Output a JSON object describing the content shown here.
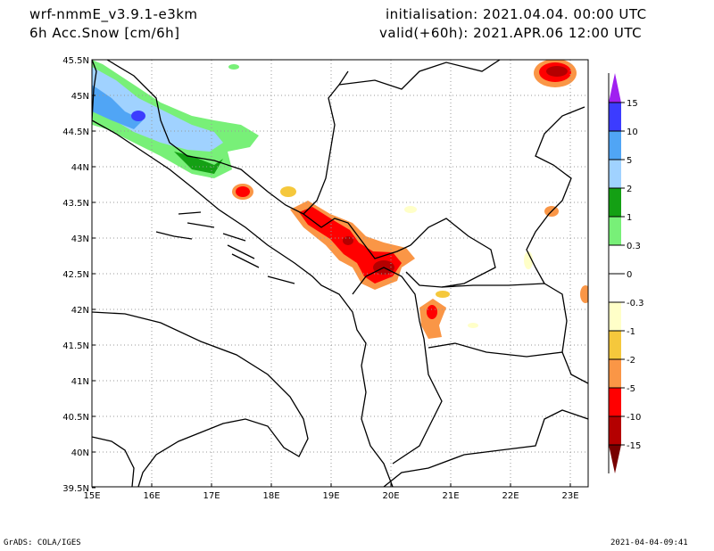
{
  "header": {
    "model": "wrf-nmmE_v3.9.1-e3km",
    "variable": "6h Acc.Snow [cm/6h]",
    "init": "initialisation: 2021.04.04.  00:00 UTC",
    "valid": "valid(+60h): 2021.APR.06 12:00 UTC"
  },
  "map": {
    "lon_labels": [
      "15E",
      "16E",
      "17E",
      "18E",
      "19E",
      "20E",
      "21E",
      "22E",
      "23E"
    ],
    "lat_labels": [
      "45.5N",
      "45N",
      "44.5N",
      "44N",
      "43.5N",
      "43N",
      "42.5N",
      "42N",
      "41.5N",
      "41N",
      "40.5N",
      "40N",
      "39.5N"
    ]
  },
  "colorbar": {
    "labels": [
      "15",
      "10",
      "5",
      "2",
      "1",
      "0.3",
      "0",
      "-0.3",
      "-1",
      "-2",
      "-5",
      "-10",
      "-15"
    ],
    "colors": [
      "#3c3cff",
      "#50a5f5",
      "#a0d2ff",
      "#14a014",
      "#78f078",
      "#ffffff",
      "#ffffff",
      "#ffffc8",
      "#f5c83c",
      "#fa9646",
      "#ff0000",
      "#b40000"
    ],
    "top_color": "#a020f0",
    "bottom_color": "#780000"
  },
  "footer": {
    "left": "GrADS: COLA/IGES",
    "right": "2021-04-04-09:41"
  }
}
